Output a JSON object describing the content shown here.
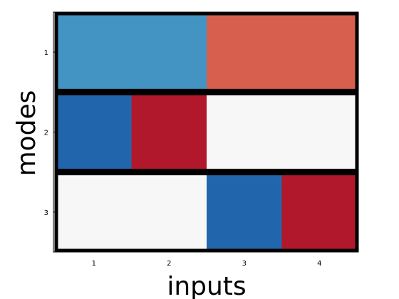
{
  "chart_data": {
    "type": "heatmap",
    "xlabel": "inputs",
    "ylabel": "modes",
    "x_ticks": [
      "1",
      "2",
      "3",
      "4"
    ],
    "y_ticks": [
      "1",
      "2",
      "3"
    ],
    "rows": [
      {
        "mode": "1",
        "cells": [
          {
            "from": "1",
            "to": "2",
            "color": "#4393c3"
          },
          {
            "from": "3",
            "to": "4",
            "color": "#d6604d"
          }
        ]
      },
      {
        "mode": "2",
        "cells": [
          {
            "from": "1",
            "to": "1",
            "color": "#2166ac"
          },
          {
            "from": "2",
            "to": "2",
            "color": "#b2182b"
          },
          {
            "from": "3",
            "to": "4",
            "color": "#f7f7f7"
          }
        ]
      },
      {
        "mode": "3",
        "cells": [
          {
            "from": "1",
            "to": "2",
            "color": "#f7f7f7"
          },
          {
            "from": "3",
            "to": "3",
            "color": "#2166ac"
          },
          {
            "from": "4",
            "to": "4",
            "color": "#b2182b"
          }
        ]
      }
    ]
  }
}
